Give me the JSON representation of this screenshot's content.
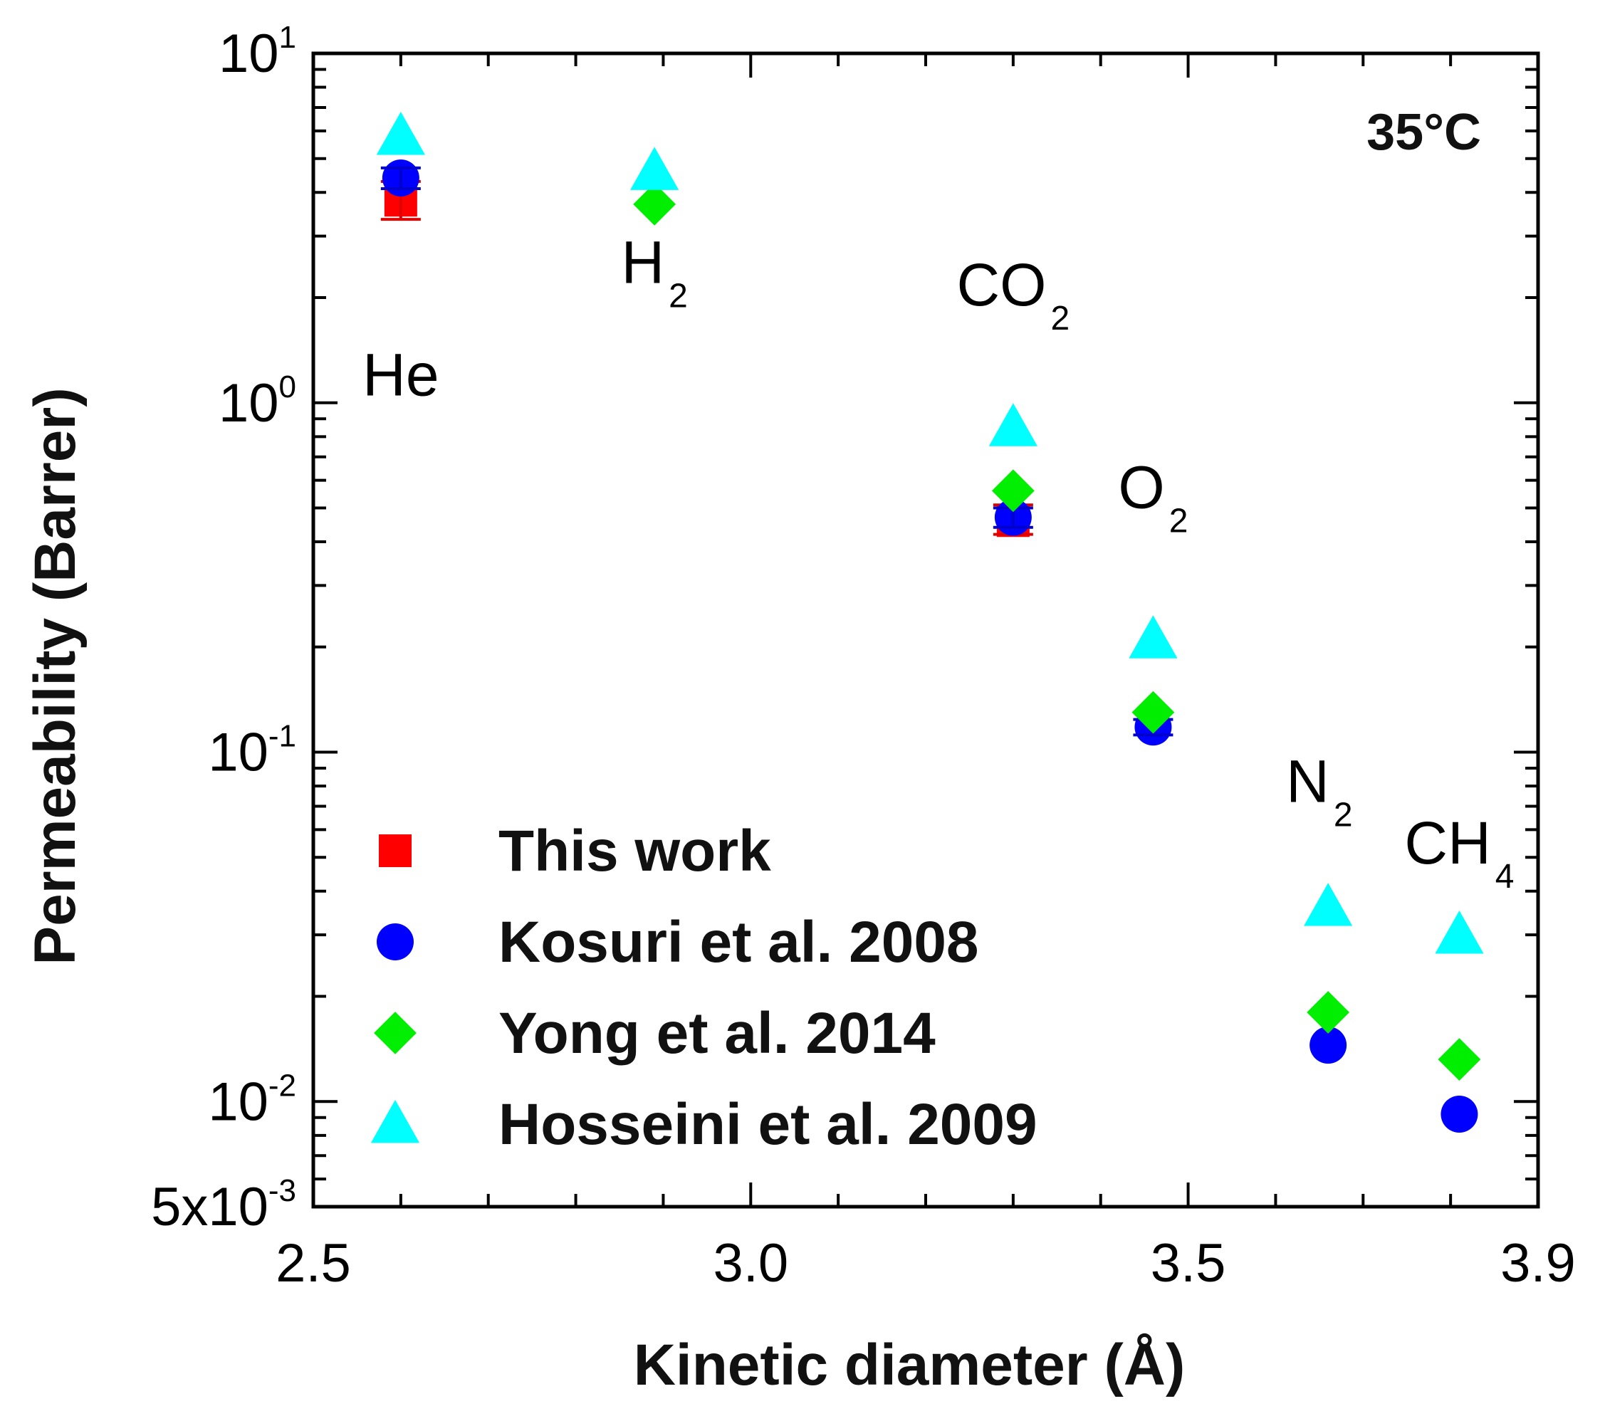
{
  "chart_data": {
    "type": "scatter",
    "xlabel": "Kinetic diameter (Å)",
    "ylabel": "Permeability (Barrer)",
    "annotation": "35°C",
    "xlim": [
      2.5,
      3.9
    ],
    "ylim": [
      0.005,
      10
    ],
    "yscale": "log",
    "x_ticks": [
      {
        "value": 2.5,
        "label": "2.5"
      },
      {
        "value": 3.0,
        "label": "3.0"
      },
      {
        "value": 3.5,
        "label": "3.5"
      },
      {
        "value": 3.9,
        "label": "3.9"
      }
    ],
    "y_ticks": [
      {
        "value": 10,
        "base": "10",
        "exp": "1"
      },
      {
        "value": 1,
        "base": "10",
        "exp": "0"
      },
      {
        "value": 0.1,
        "base": "10",
        "exp": "-1"
      },
      {
        "value": 0.01,
        "base": "10",
        "exp": "-2"
      },
      {
        "value": 0.005,
        "base": "5x10",
        "exp": "-3"
      }
    ],
    "gas_labels": [
      {
        "name": "He",
        "sub": "",
        "x": 2.6,
        "y": 1.05
      },
      {
        "name": "H",
        "sub": "2",
        "x": 2.89,
        "y": 2.2
      },
      {
        "name": "CO",
        "sub": "2",
        "x": 3.3,
        "y": 1.9
      },
      {
        "name": "O",
        "sub": "2",
        "x": 3.46,
        "y": 0.5
      },
      {
        "name": "N",
        "sub": "2",
        "x": 3.65,
        "y": 0.072
      },
      {
        "name": "CH",
        "sub": "4",
        "x": 3.81,
        "y": 0.048
      }
    ],
    "series": [
      {
        "name": "This work",
        "marker": "square",
        "color": "#ff0000",
        "points": [
          {
            "x": 2.6,
            "y": 3.8,
            "err_low": 3.35,
            "err_high": 4.3
          },
          {
            "x": 3.3,
            "y": 0.46,
            "err_low": 0.42,
            "err_high": 0.51
          }
        ]
      },
      {
        "name": "Kosuri et al. 2008",
        "marker": "circle",
        "color": "#0000ff",
        "points": [
          {
            "x": 2.6,
            "y": 4.4,
            "err_low": 4.1,
            "err_high": 4.7
          },
          {
            "x": 3.3,
            "y": 0.47,
            "err_low": 0.44,
            "err_high": 0.5
          },
          {
            "x": 3.46,
            "y": 0.118,
            "err_low": 0.112,
            "err_high": 0.124
          },
          {
            "x": 3.66,
            "y": 0.0145
          },
          {
            "x": 3.81,
            "y": 0.0092
          }
        ]
      },
      {
        "name": "Yong et al. 2014",
        "marker": "diamond",
        "color": "#00ee00",
        "points": [
          {
            "x": 2.89,
            "y": 3.7
          },
          {
            "x": 3.3,
            "y": 0.56
          },
          {
            "x": 3.46,
            "y": 0.13
          },
          {
            "x": 3.66,
            "y": 0.018
          },
          {
            "x": 3.81,
            "y": 0.0132
          }
        ]
      },
      {
        "name": "Hosseini et al. 2009",
        "marker": "triangle",
        "color": "#00ffff",
        "points": [
          {
            "x": 2.6,
            "y": 5.8
          },
          {
            "x": 2.89,
            "y": 4.6
          },
          {
            "x": 3.3,
            "y": 0.85
          },
          {
            "x": 3.46,
            "y": 0.21
          },
          {
            "x": 3.66,
            "y": 0.036
          },
          {
            "x": 3.81,
            "y": 0.03
          }
        ]
      }
    ],
    "legend": {
      "position": "bottom-left"
    }
  }
}
